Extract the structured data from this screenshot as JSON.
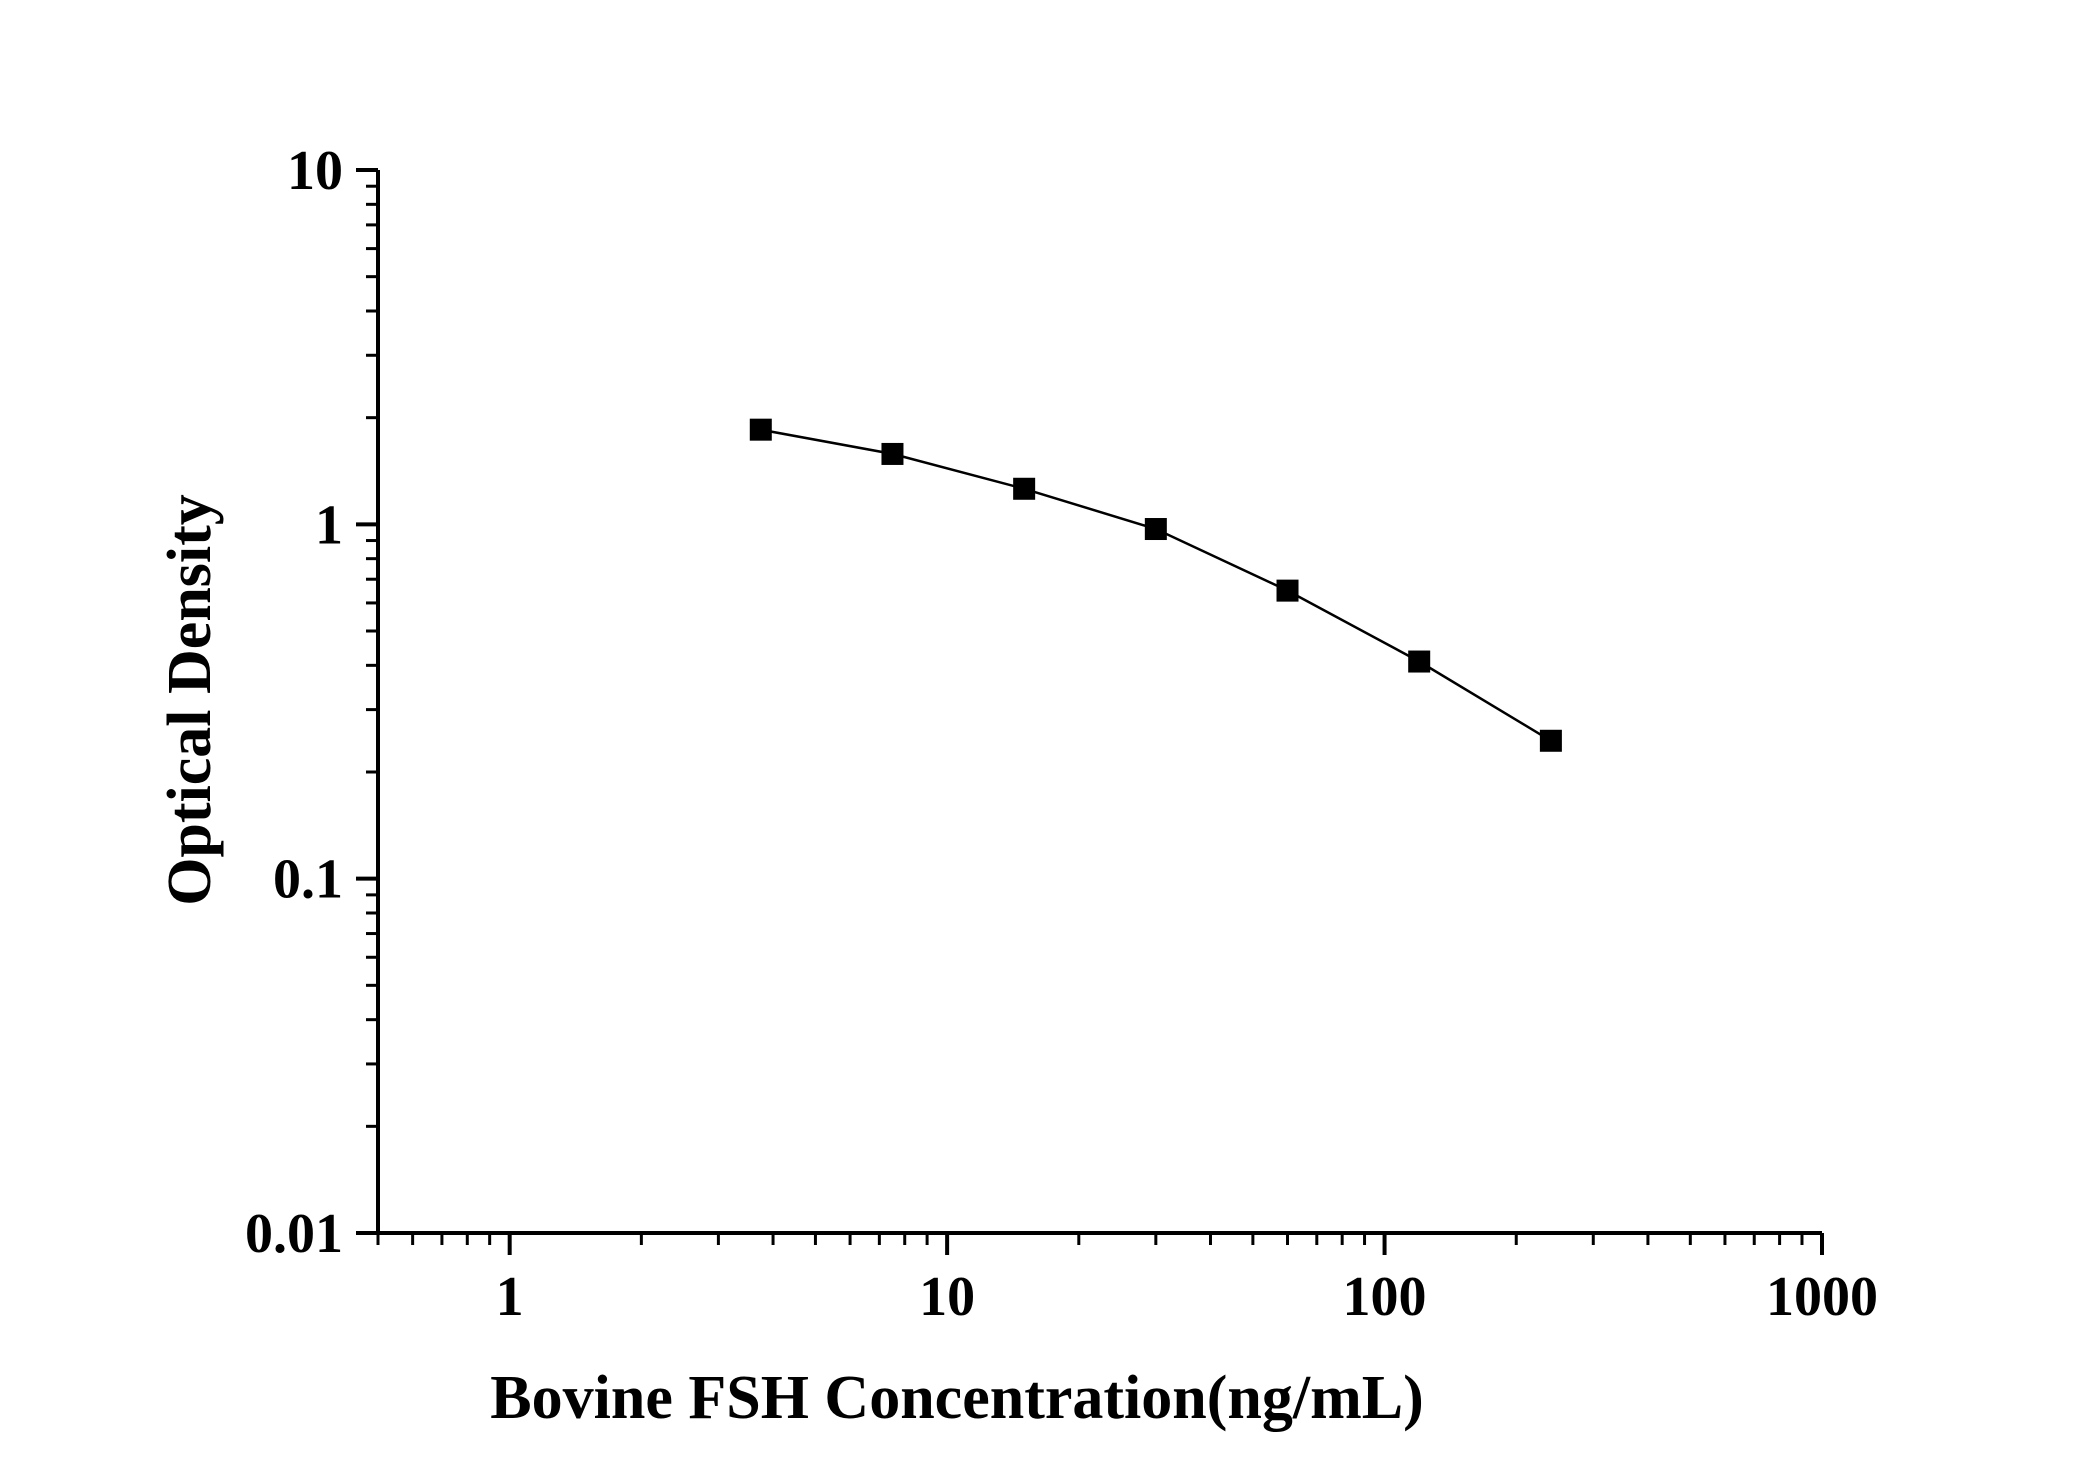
{
  "chart_data": {
    "type": "line",
    "xlabel": "Bovine FSH Concentration(ng/mL)",
    "ylabel": "Optical Density",
    "xscale": "log",
    "yscale": "log",
    "xlim": [
      0.5,
      1000
    ],
    "ylim": [
      0.01,
      10
    ],
    "x_ticks": [
      "1",
      "10",
      "100",
      "1000"
    ],
    "y_ticks": [
      "0.01",
      "0.1",
      "1",
      "10"
    ],
    "grid": false,
    "marker": "square",
    "colors": {
      "series": "#000000",
      "axis": "#000000"
    },
    "series": [
      {
        "x": [
          3.75,
          7.5,
          15,
          30,
          60,
          120,
          240
        ],
        "y": [
          1.85,
          1.58,
          1.26,
          0.97,
          0.65,
          0.41,
          0.245
        ]
      }
    ]
  }
}
